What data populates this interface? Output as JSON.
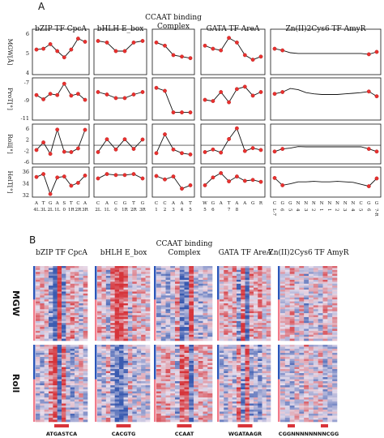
{
  "panels": {
    "a": "A",
    "b": "B"
  },
  "tfs": [
    {
      "title_lines": [
        "bZIP TF CpcA"
      ]
    },
    {
      "title_lines": [
        "bHLH E_box"
      ]
    },
    {
      "title_lines": [
        "CCAAT binding",
        "Complex"
      ]
    },
    {
      "title_lines": [
        "GATA TF AreA"
      ]
    },
    {
      "title_lines": [
        "Zn(II)2Cys6 TF AmyR"
      ]
    }
  ],
  "row_labels": [
    "MGW[Å]",
    "ProT[°]",
    "Roll[°]",
    "HelT[°]"
  ],
  "row_ticks": [
    [
      "6",
      "5",
      "4"
    ],
    [
      "-7",
      "-9",
      "-11"
    ],
    [
      "6",
      "2",
      "-2",
      "-6"
    ],
    [
      "36",
      "34",
      "32"
    ]
  ],
  "heatmap_row_labels": [
    "MGW",
    "Roll"
  ],
  "motifs": [
    "ATGASTCA",
    "CACGTG",
    "CCAAT",
    "WGATAAGR",
    "CGGNNNNNNNNCGG"
  ],
  "colors": {
    "line": "#111111",
    "point": "#e8312f",
    "hm_red": "#d9343a",
    "hm_blue": "#3a5bb0",
    "bar_blue": "#2b55b8",
    "bar_pink": "#f07a8a"
  },
  "chart_data": [
    {
      "type": "line",
      "title": "bZIP TF CpcA",
      "x": [
        "A",
        "T",
        "G",
        "A",
        "S",
        "T",
        "C",
        "A"
      ],
      "x_positions": [
        "4L",
        "3L",
        "2L",
        "1L",
        "0",
        "1R",
        "2R",
        "3R"
      ],
      "series": [
        {
          "name": "MGW[Å]",
          "values": [
            5.0,
            5.05,
            5.35,
            4.9,
            4.5,
            5.0,
            5.7,
            5.5
          ],
          "ylim": [
            3.5,
            6.2
          ]
        },
        {
          "name": "ProT[°]",
          "values": [
            -8.1,
            -8.8,
            -7.9,
            -8.1,
            -6.2,
            -8.2,
            -7.9,
            -8.9
          ],
          "ylim": [
            -12,
            -5.5
          ]
        },
        {
          "name": "Roll[°]",
          "values": [
            -1.8,
            1.1,
            -3.3,
            6.0,
            -2.5,
            -2.6,
            -1.2,
            5.9
          ],
          "ylim": [
            -6.5,
            7.5
          ]
        },
        {
          "name": "HelT[°]",
          "values": [
            35.3,
            35.9,
            31.8,
            35.2,
            35.4,
            33.5,
            34.1,
            35.6
          ],
          "ylim": [
            31.5,
            37
          ]
        }
      ]
    },
    {
      "type": "line",
      "title": "bHLH E_box",
      "x": [
        "C",
        "A",
        "C",
        "G",
        "T",
        "G"
      ],
      "x_positions": [
        "2L",
        "1L",
        "0",
        "1R",
        "2R",
        "3R"
      ],
      "series": [
        {
          "name": "MGW[Å]",
          "values": [
            5.55,
            5.45,
            4.9,
            4.9,
            5.45,
            5.55
          ],
          "ylim": [
            3.5,
            6.2
          ]
        },
        {
          "name": "ProT[°]",
          "values": [
            -7.6,
            -8.0,
            -8.6,
            -8.6,
            -8.0,
            -7.6
          ],
          "ylim": [
            -12,
            -5.5
          ]
        },
        {
          "name": "Roll[°]",
          "values": [
            -2.6,
            2.3,
            -1.6,
            2.3,
            -1.4,
            2.2
          ],
          "ylim": [
            -6.5,
            7.5
          ]
        },
        {
          "name": "HelT[°]",
          "values": [
            35.0,
            35.9,
            35.7,
            35.7,
            35.9,
            35.0
          ],
          "ylim": [
            31.5,
            37
          ]
        }
      ]
    },
    {
      "type": "line",
      "title": "CCAAT binding Complex",
      "x": [
        "C",
        "C",
        "A",
        "A",
        "T"
      ],
      "x_positions": [
        "1",
        "2",
        "3",
        "4",
        "5"
      ],
      "series": [
        {
          "name": "MGW[Å]",
          "values": [
            5.45,
            5.25,
            4.65,
            4.55,
            4.45
          ],
          "ylim": [
            3.5,
            6.2
          ]
        },
        {
          "name": "ProT[°]",
          "values": [
            -6.9,
            -7.4,
            -11.0,
            -11.0,
            -11.0
          ],
          "ylim": [
            -12,
            -5.5
          ]
        },
        {
          "name": "Roll[°]",
          "values": [
            -3.0,
            4.2,
            -1.6,
            -3.0,
            -3.5
          ],
          "ylim": [
            -6.5,
            7.5
          ]
        },
        {
          "name": "HelT[°]",
          "values": [
            35.5,
            34.8,
            35.4,
            32.9,
            33.6
          ],
          "ylim": [
            31.5,
            37
          ]
        }
      ]
    },
    {
      "type": "line",
      "title": "GATA TF AreA",
      "x": [
        "W",
        "G",
        "A",
        "T",
        "A",
        "A",
        "G",
        "R"
      ],
      "x_positions": [
        "5",
        "6",
        "",
        "7",
        "8",
        "",
        "",
        ""
      ],
      "series": [
        {
          "name": "MGW[Å]",
          "values": [
            5.25,
            5.05,
            4.95,
            5.75,
            5.45,
            4.65,
            4.35,
            4.55
          ],
          "ylim": [
            3.5,
            6.2
          ]
        },
        {
          "name": "ProT[°]",
          "values": [
            -8.9,
            -9.1,
            -7.6,
            -9.3,
            -7.1,
            -6.7,
            -8.2,
            -7.6
          ],
          "ylim": [
            -12,
            -5.5
          ]
        },
        {
          "name": "Roll[°]",
          "values": [
            -2.6,
            -1.6,
            -2.8,
            2.4,
            6.5,
            -2.2,
            -1.1,
            -1.8
          ],
          "ylim": [
            -6.5,
            7.5
          ]
        },
        {
          "name": "HelT[°]",
          "values": [
            33.6,
            35.2,
            36.1,
            34.4,
            35.4,
            34.5,
            34.7,
            34.3
          ],
          "ylim": [
            31.5,
            37
          ]
        }
      ]
    },
    {
      "type": "line",
      "title": "Zn(II)2Cys6 TF AmyR",
      "x": [
        "C",
        "G",
        "G",
        "N",
        "N",
        "N",
        "N",
        "N",
        "N",
        "N",
        "N",
        "C",
        "G",
        "G"
      ],
      "x_positions": [
        "L-7",
        "6",
        "5",
        "4",
        "3",
        "2",
        "1",
        "1",
        "2",
        "3",
        "4",
        "5",
        "6",
        "7-R"
      ],
      "series": [
        {
          "name": "MGW[Å]",
          "values": [
            5.05,
            4.95,
            4.8,
            4.75,
            4.75,
            4.75,
            4.75,
            4.75,
            4.75,
            4.75,
            4.75,
            4.75,
            4.7,
            4.85
          ],
          "ylim": [
            3.5,
            6.2
          ]
        },
        {
          "name": "ProT[°]",
          "values": [
            -7.9,
            -7.6,
            -7.0,
            -7.2,
            -7.7,
            -7.9,
            -8.0,
            -8.0,
            -8.0,
            -7.9,
            -7.8,
            -7.7,
            -7.5,
            -8.3
          ],
          "ylim": [
            -12,
            -5.5
          ]
        },
        {
          "name": "Roll[°]",
          "values": [
            -2.4,
            -1.4,
            -1.1,
            -0.5,
            -0.6,
            -0.6,
            -0.6,
            -0.6,
            -0.6,
            -0.6,
            -0.6,
            -0.6,
            -1.4,
            -2.4
          ],
          "ylim": [
            -6.5,
            7.5
          ]
        },
        {
          "name": "HelT[°]",
          "values": [
            35.1,
            33.6,
            33.9,
            34.3,
            34.3,
            34.4,
            34.3,
            34.3,
            34.4,
            34.3,
            34.2,
            33.8,
            33.4,
            35.0
          ],
          "ylim": [
            31.5,
            37
          ]
        }
      ]
    }
  ]
}
